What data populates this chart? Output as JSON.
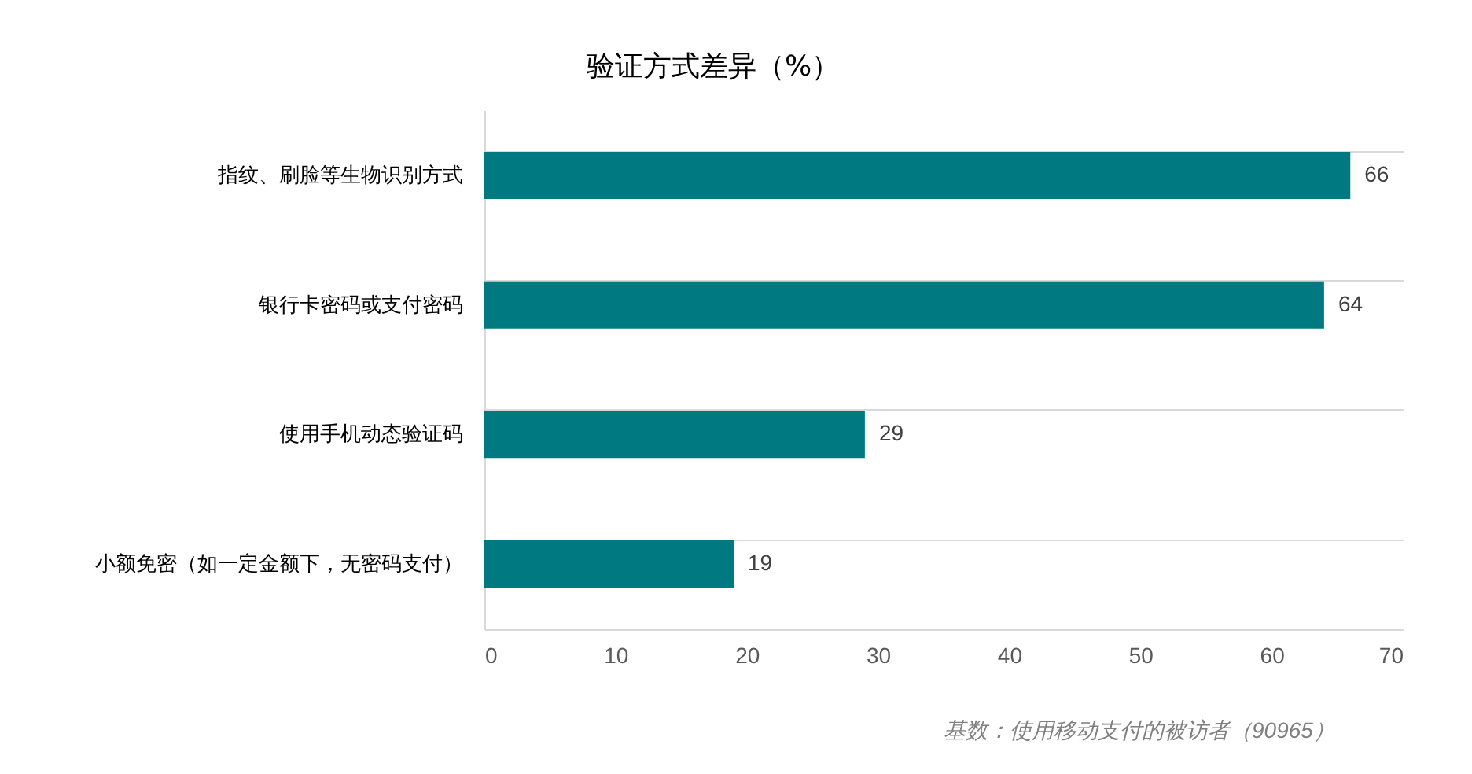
{
  "chart_data": {
    "type": "bar",
    "orientation": "horizontal",
    "title": "验证方式差异（%）",
    "categories": [
      "指纹、刷脸等生物识别方式",
      "银行卡密码或支付密码",
      "使用手机动态验证码",
      "小额免密（如一定金额下，无密码支付）"
    ],
    "values": [
      66,
      64,
      29,
      19
    ],
    "color": "#007a80",
    "xlim": [
      0,
      70
    ],
    "xticks": [
      0,
      10,
      20,
      30,
      40,
      50,
      60,
      70
    ],
    "grid": "y",
    "data_labels": true,
    "annotations": [
      "基数：使用移动支付的被访者（90965）"
    ]
  }
}
